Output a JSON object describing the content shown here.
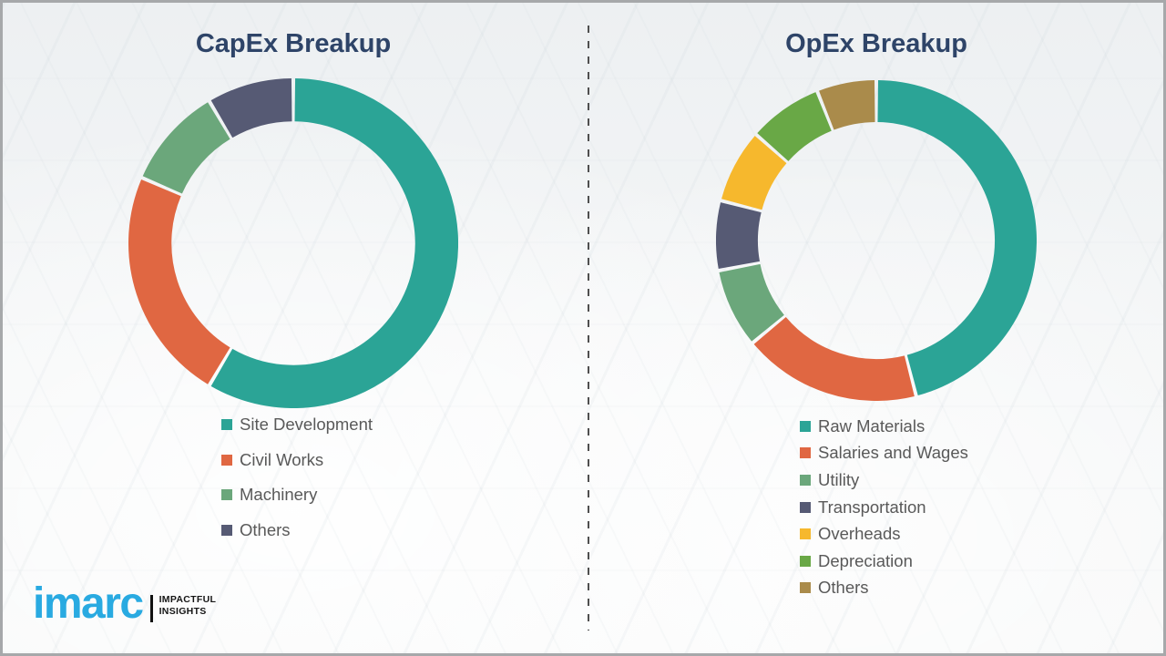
{
  "page": {
    "background_color": "#f3f5f6",
    "frame_border_color": "#a6a8aa",
    "divider_color": "#4f4f4f",
    "divider_style": "vertical-dashed",
    "legend_text_color": "#595959"
  },
  "chart_data": [
    {
      "type": "pie",
      "subtype": "donut",
      "title": "CapEx Breakup",
      "title_color": "#2e4468",
      "categories": [
        "Site Development",
        "Civil Works",
        "Machinery",
        "Others"
      ],
      "values": [
        58.5,
        23,
        10,
        8.5
      ],
      "colors": [
        "#2ba496",
        "#e06742",
        "#6ba77b",
        "#565a74"
      ],
      "values_note": "percent shares estimated from arc angles; no numeric labels shown in chart",
      "start_angle_deg": 0,
      "direction": "clockwise",
      "data_labels": false,
      "legend_position": "below-left"
    },
    {
      "type": "pie",
      "subtype": "donut",
      "title": "OpEx Breakup",
      "title_color": "#2e4468",
      "categories": [
        "Raw Materials",
        "Salaries and Wages",
        "Utility",
        "Transportation",
        "Overheads",
        "Depreciation",
        "Others"
      ],
      "values": [
        46,
        18,
        8,
        7,
        7.5,
        7.5,
        6
      ],
      "colors": [
        "#2ba496",
        "#e06742",
        "#6ba77b",
        "#565a74",
        "#f6b82d",
        "#69a846",
        "#aa8b4b"
      ],
      "values_note": "percent shares estimated from arc angles; no numeric labels shown in chart",
      "start_angle_deg": 0,
      "direction": "clockwise",
      "data_labels": false,
      "legend_position": "below-left"
    }
  ],
  "logo": {
    "brand": "imarc",
    "brand_color": "#29aae1",
    "tagline_line1": "IMPACTFUL",
    "tagline_line2": "INSIGHTS",
    "tagline_color": "#151515"
  }
}
